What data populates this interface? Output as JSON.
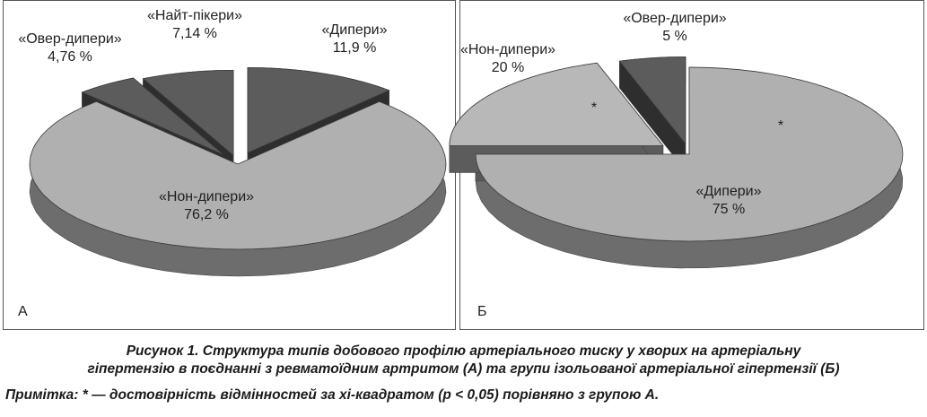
{
  "chart_data": [
    {
      "type": "pie",
      "panel_label": "А",
      "slices": [
        {
          "label": "«Дипери»",
          "value": 11.9,
          "value_text": "11,9 %",
          "color": "#5c5c5c"
        },
        {
          "label": "«Нон-дипери»",
          "value": 76.2,
          "value_text": "76,2 %",
          "color": "#b0b0b0"
        },
        {
          "label": "«Овер-дипери»",
          "value": 4.76,
          "value_text": "4,76 %",
          "color": "#5c5c5c"
        },
        {
          "label": "«Найт-пікери»",
          "value": 7.14,
          "value_text": "7,14 %",
          "color": "#5c5c5c"
        }
      ]
    },
    {
      "type": "pie",
      "panel_label": "Б",
      "slices": [
        {
          "label": "«Дипери»",
          "value": 75,
          "value_text": "75 %",
          "color": "#b0b0b0",
          "mark": "*"
        },
        {
          "label": "«Нон-дипери»",
          "value": 20,
          "value_text": "20 %",
          "color": "#b8b8b8",
          "mark": "*"
        },
        {
          "label": "«Овер-дипери»",
          "value": 5,
          "value_text": "5 %",
          "color": "#5c5c5c"
        }
      ]
    }
  ],
  "caption": {
    "line1": "Рисунок 1.  Структура типів добового профілю артеріального тиску у хворих на артеріальну",
    "line2": "гіпертензію в поєднанні з ревматоїдним артритом (А) та групи ізольованої артеріальної гіпертензії (Б)",
    "note": "Примітка:  * — достовірність відмінностей за хі-квадратом (р < 0,05) порівняно з групою А."
  }
}
